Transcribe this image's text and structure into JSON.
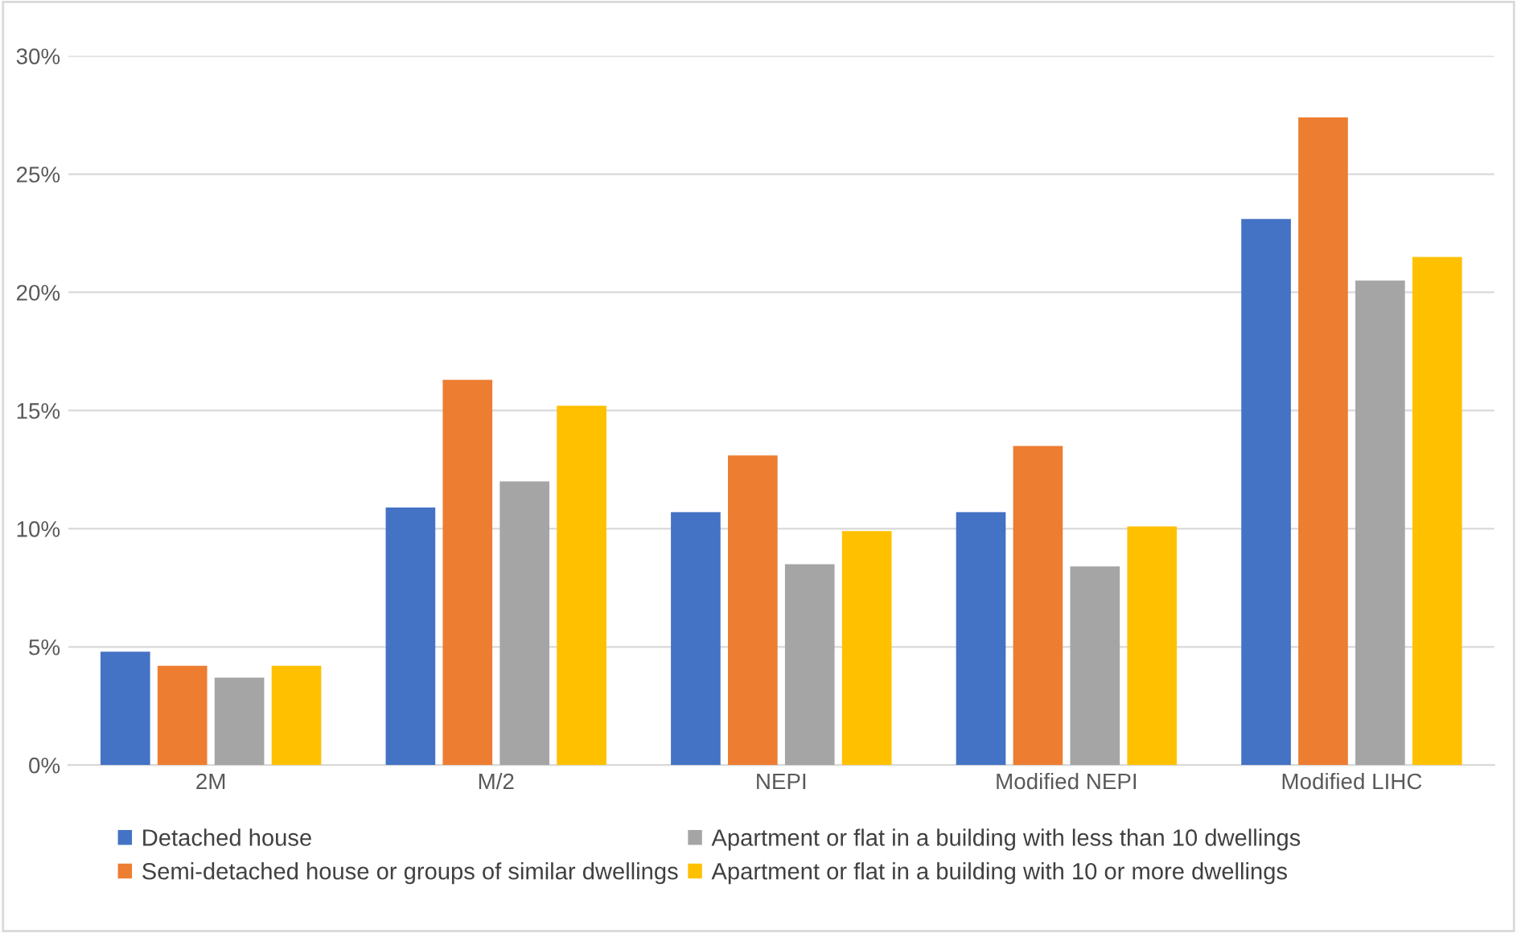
{
  "chart_data": {
    "type": "bar",
    "categories": [
      "2M",
      "M/2",
      "NEPI",
      "Modified NEPI",
      "Modified LIHC"
    ],
    "series": [
      {
        "name": "Detached house",
        "color": "#4472c4",
        "values": [
          4.8,
          10.9,
          10.7,
          10.7,
          23.1
        ]
      },
      {
        "name": "Semi-detached house or groups of similar dwellings",
        "color": "#ed7d31",
        "values": [
          4.2,
          16.3,
          13.1,
          13.5,
          27.4
        ]
      },
      {
        "name": "Apartment or flat in a building with less than 10 dwellings",
        "color": "#a5a5a5",
        "values": [
          3.7,
          12.0,
          8.5,
          8.4,
          20.5
        ]
      },
      {
        "name": "Apartment or flat in a building with 10 or more dwellings",
        "color": "#ffc000",
        "values": [
          4.2,
          15.2,
          9.9,
          10.1,
          21.5
        ]
      }
    ],
    "ylim": [
      0,
      30
    ],
    "yticks": [
      {
        "value": 0,
        "label": "0%"
      },
      {
        "value": 5,
        "label": "5%"
      },
      {
        "value": 10,
        "label": "10%"
      },
      {
        "value": 15,
        "label": "15%"
      },
      {
        "value": 20,
        "label": "20%"
      },
      {
        "value": 25,
        "label": "25%"
      },
      {
        "value": 30,
        "label": "30%"
      }
    ],
    "grid": "y",
    "legend": "bottom"
  }
}
